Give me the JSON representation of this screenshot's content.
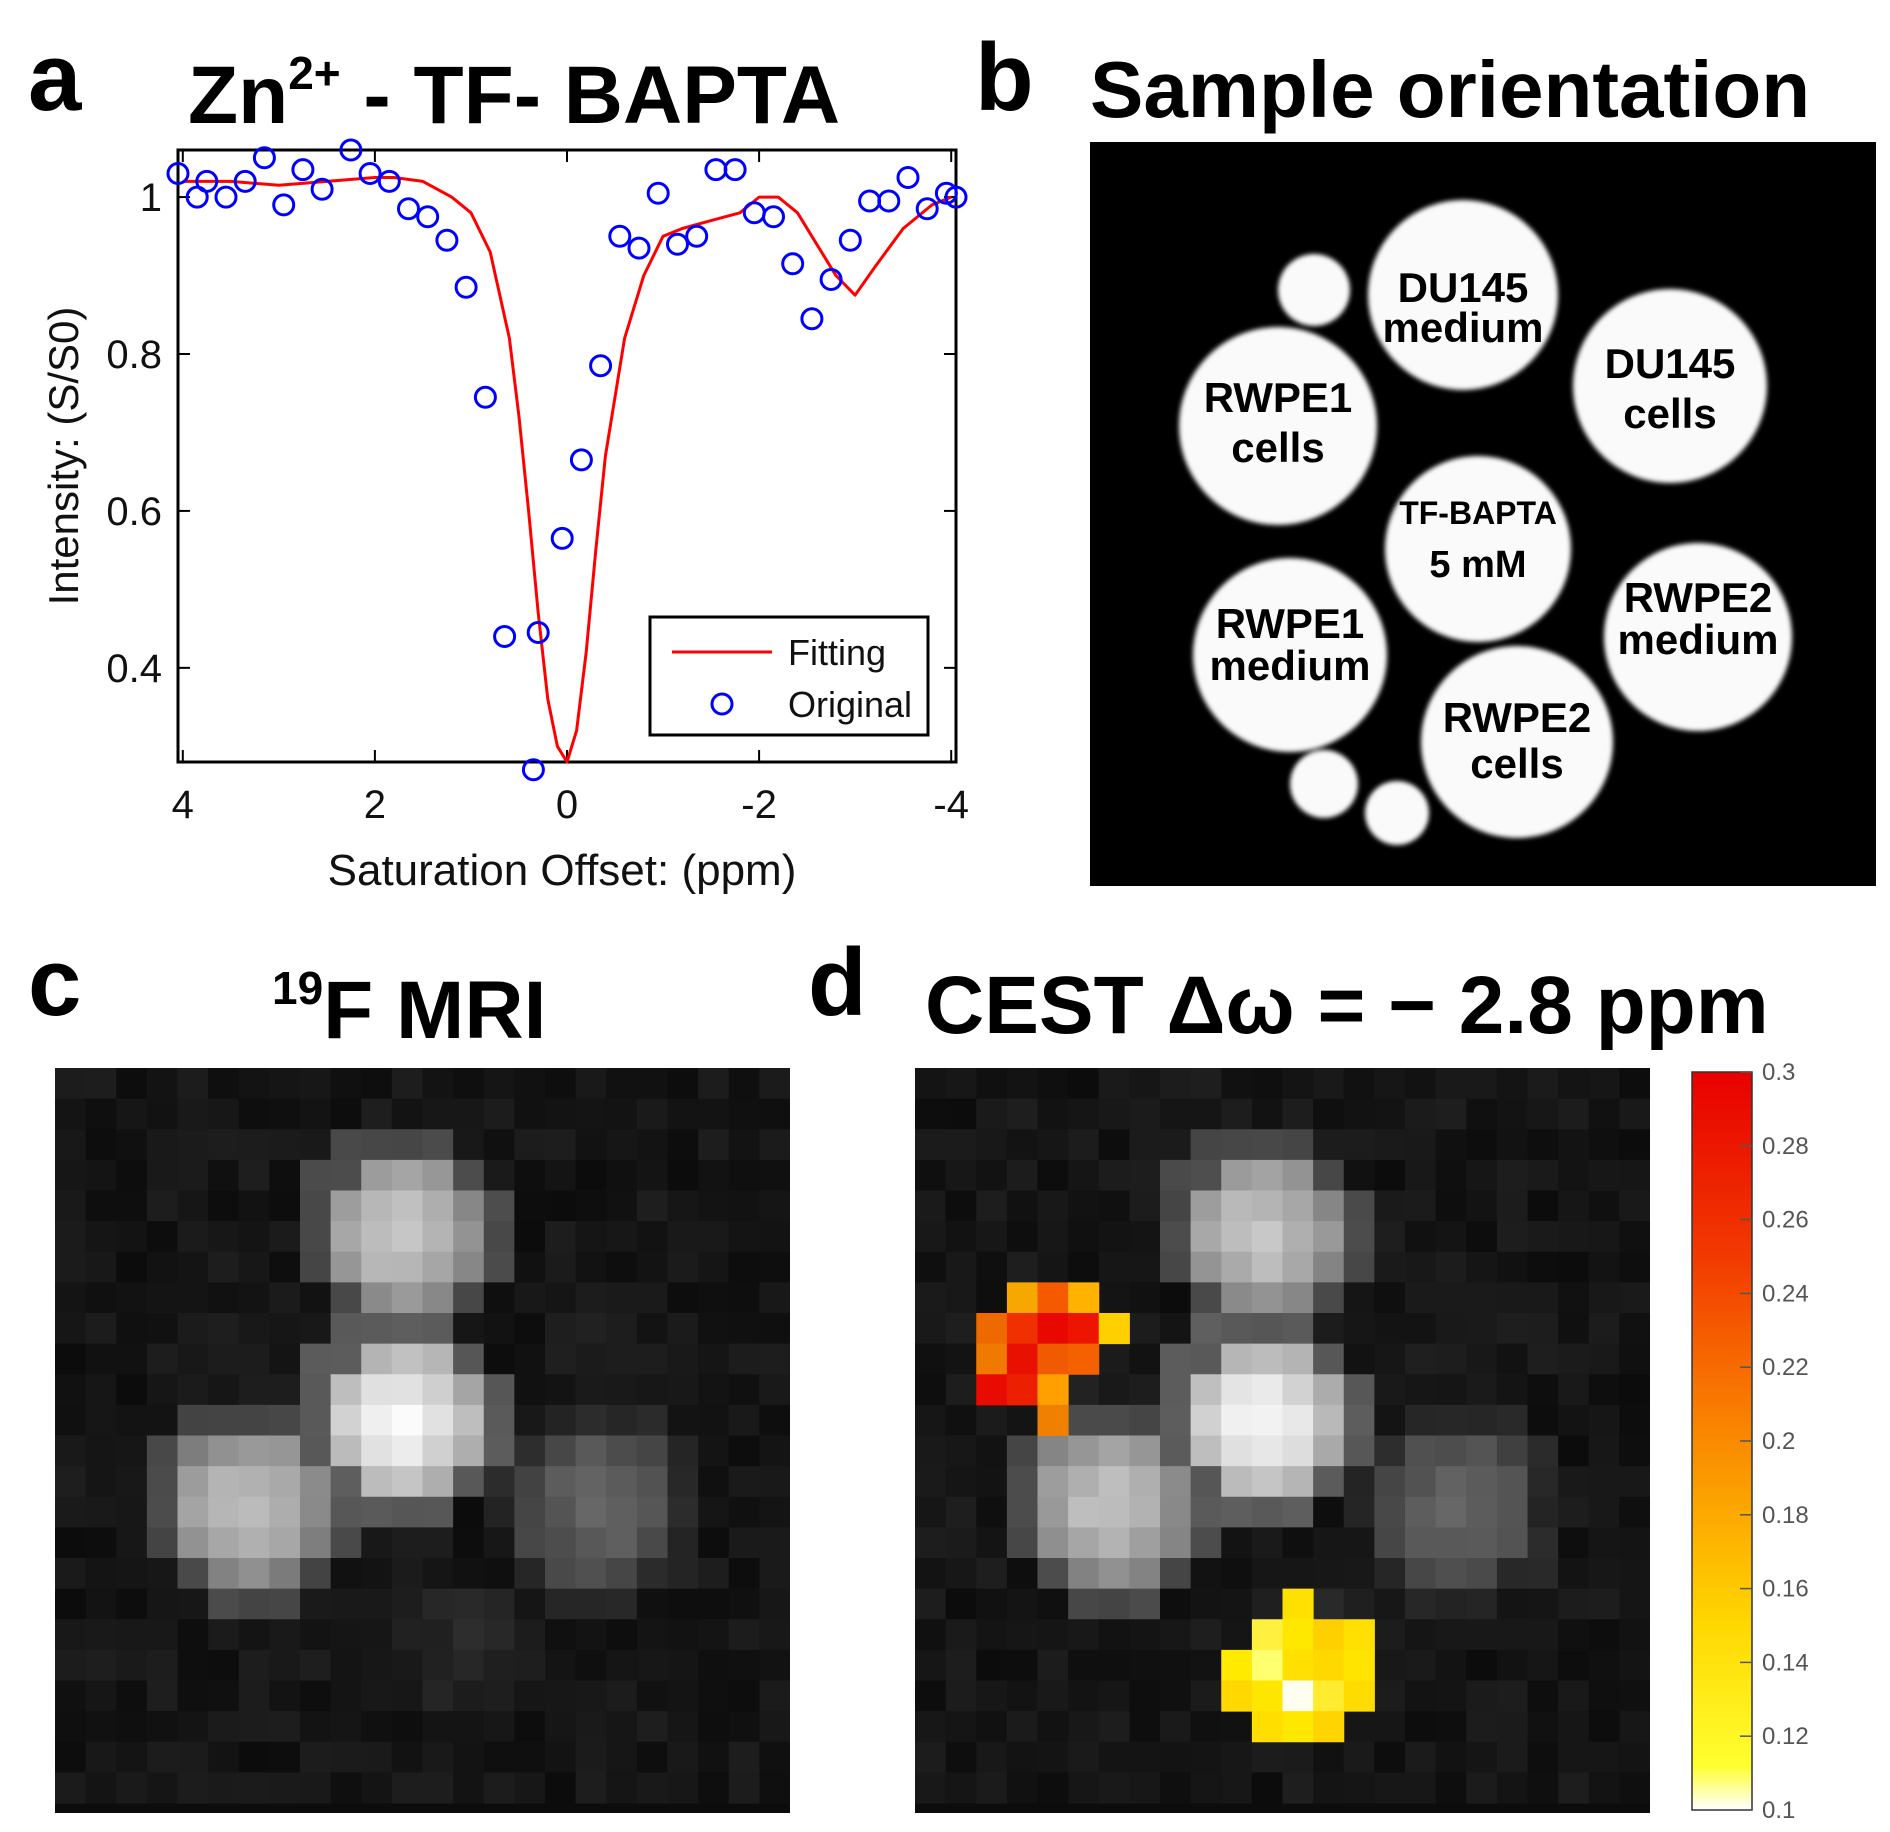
{
  "panels": {
    "a": {
      "label": "a",
      "title_base": "Zn",
      "title_sup": "2+",
      "title_rest": " - TF- BAPTA"
    },
    "b": {
      "label": "b",
      "title": "Sample orientation"
    },
    "c": {
      "label": "c",
      "title_sup": "19",
      "title_rest": "F MRI"
    },
    "d": {
      "label": "d",
      "title": "CEST Δω = − 2.8 ppm"
    }
  },
  "chart_data": {
    "type": "line",
    "title": "Zn2+ - TF- BAPTA",
    "xlabel": "Saturation Offset: (ppm)",
    "ylabel": "Intensity: (S/S0)",
    "xlim": [
      4.05,
      -4.05
    ],
    "ylim": [
      0.28,
      1.06
    ],
    "x_ticks": [
      4,
      2,
      0,
      -2,
      -4
    ],
    "x_tick_labels": [
      "4",
      "2",
      "0",
      "-2",
      "-4"
    ],
    "y_ticks": [
      0.4,
      0.6,
      0.8,
      1.0
    ],
    "y_tick_labels": [
      "0.4",
      "0.6",
      "0.8",
      "1"
    ],
    "legend": [
      "Fitting",
      "Original"
    ],
    "series": [
      {
        "name": "Fitting",
        "color": "#ff0000",
        "x": [
          4.0,
          3.5,
          3.0,
          2.5,
          2.0,
          1.8,
          1.5,
          1.2,
          1.0,
          0.8,
          0.6,
          0.5,
          0.4,
          0.3,
          0.2,
          0.1,
          0.0,
          -0.1,
          -0.2,
          -0.3,
          -0.4,
          -0.6,
          -0.8,
          -1.0,
          -1.2,
          -1.5,
          -1.8,
          -2.0,
          -2.2,
          -2.4,
          -2.6,
          -2.8,
          -3.0,
          -3.2,
          -3.5,
          -3.8,
          -4.0
        ],
        "y": [
          1.02,
          1.02,
          1.015,
          1.02,
          1.025,
          1.025,
          1.02,
          1.0,
          0.98,
          0.93,
          0.82,
          0.72,
          0.6,
          0.47,
          0.36,
          0.3,
          0.28,
          0.32,
          0.42,
          0.55,
          0.67,
          0.82,
          0.9,
          0.95,
          0.96,
          0.97,
          0.98,
          1.0,
          1.0,
          0.98,
          0.94,
          0.9,
          0.875,
          0.91,
          0.96,
          0.99,
          1.0
        ]
      },
      {
        "name": "Original",
        "color": "#0000ff",
        "x": [
          4.05,
          3.85,
          3.75,
          3.55,
          3.35,
          3.15,
          2.95,
          2.75,
          2.55,
          2.25,
          2.05,
          1.85,
          1.65,
          1.45,
          1.25,
          1.05,
          0.85,
          0.65,
          0.35,
          0.3,
          0.05,
          -0.15,
          -0.35,
          -0.55,
          -0.75,
          -0.95,
          -1.15,
          -1.35,
          -1.55,
          -1.75,
          -1.95,
          -2.15,
          -2.35,
          -2.55,
          -2.75,
          -2.95,
          -3.15,
          -3.35,
          -3.55,
          -3.75,
          -3.95,
          -4.05
        ],
        "y": [
          1.03,
          1.0,
          1.02,
          1.0,
          1.02,
          1.05,
          0.99,
          1.035,
          1.01,
          1.06,
          1.03,
          1.02,
          0.985,
          0.975,
          0.945,
          0.885,
          0.745,
          0.44,
          0.27,
          0.445,
          0.565,
          0.665,
          0.785,
          0.95,
          0.935,
          1.005,
          0.94,
          0.95,
          1.035,
          1.035,
          0.98,
          0.975,
          0.915,
          0.845,
          0.895,
          0.945,
          0.995,
          0.995,
          1.025,
          0.985,
          1.005,
          1.0
        ]
      }
    ]
  },
  "sample_map": {
    "labels": [
      [
        "DU145",
        "medium"
      ],
      [
        "DU145",
        "cells"
      ],
      [
        "RWPE1",
        "cells"
      ],
      [
        "TF-BAPTA",
        "5 mM"
      ],
      [
        "RWPE1",
        "medium"
      ],
      [
        "RWPE2",
        "medium"
      ],
      [
        "RWPE2",
        "cells"
      ]
    ]
  },
  "colorbar": {
    "min": 0.1,
    "max": 0.3,
    "tick_labels": [
      "0.3",
      "0.28",
      "0.26",
      "0.24",
      "0.22",
      "0.2",
      "0.18",
      "0.16",
      "0.14",
      "0.12",
      "0.1"
    ]
  }
}
